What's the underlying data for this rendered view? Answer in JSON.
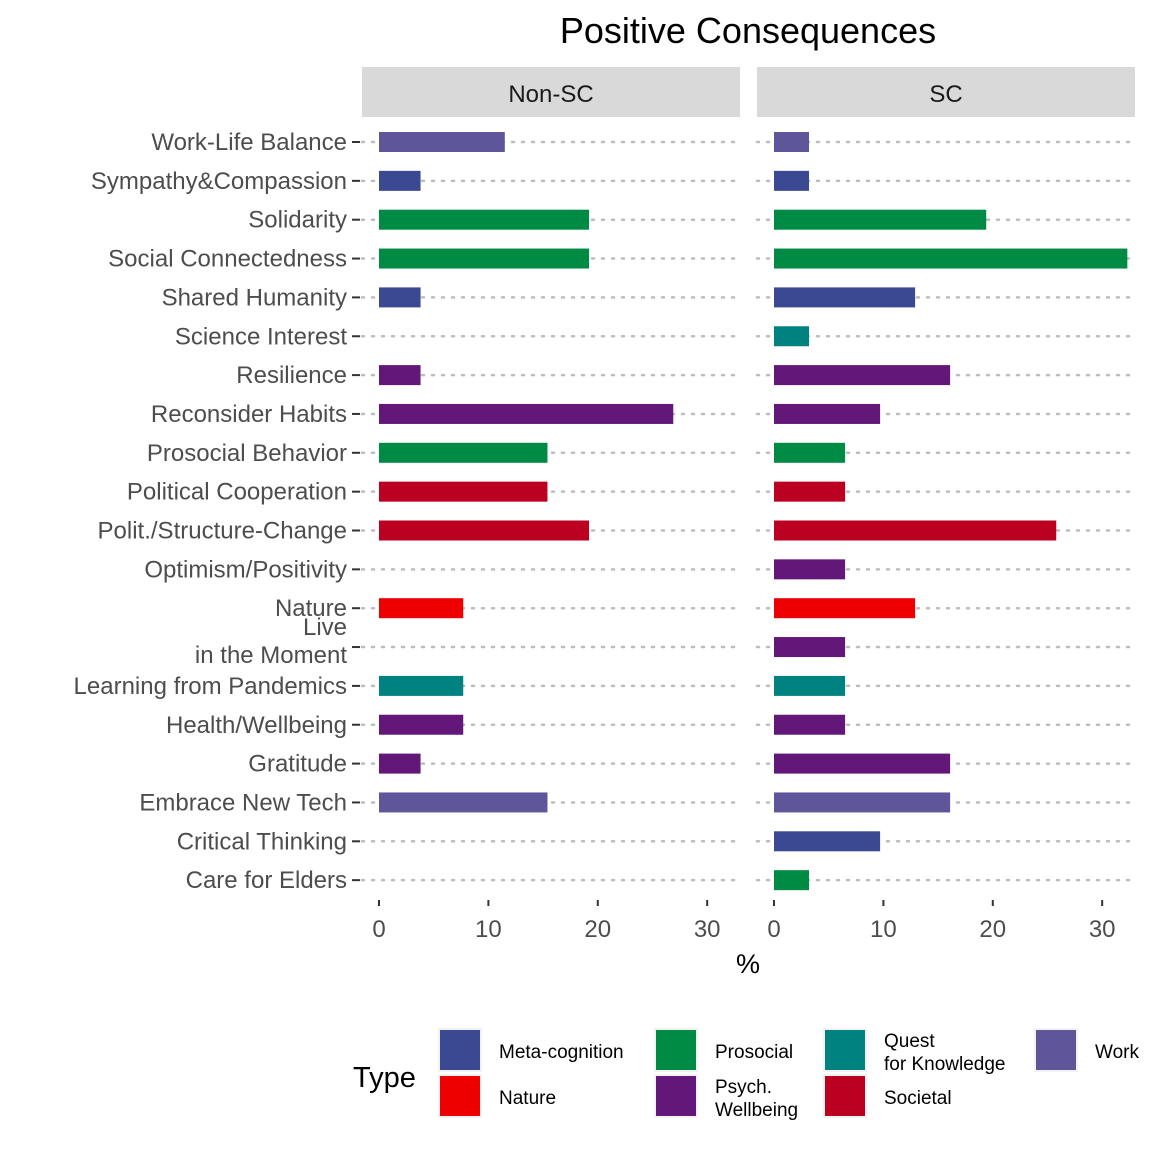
{
  "chart_data": {
    "type": "bar",
    "orientation": "horizontal",
    "title": "Positive Consequences",
    "xlabel": "%",
    "ylabel": "",
    "xlim": [
      0,
      33
    ],
    "xticks": [
      0,
      10,
      20,
      30
    ],
    "grid": "dotted horizontal lines per category",
    "facets": [
      "Non-SC",
      "SC"
    ],
    "categories": [
      "Work-Life Balance",
      "Sympathy&Compassion",
      "Solidarity",
      "Social Connectedness",
      "Shared Humanity",
      "Science Interest",
      "Resilience",
      "Reconsider Habits",
      "Prosocial Behavior",
      "Political Cooperation",
      "Polit./Structure-Change",
      "Optimism/Positivity",
      "Nature",
      "Live\nin the Moment",
      "Learning from Pandemics",
      "Health/Wellbeing",
      "Gratitude",
      "Embrace New Tech",
      "Critical Thinking",
      "Care for Elders"
    ],
    "category_type": [
      "Work",
      "Meta-cognition",
      "Prosocial",
      "Prosocial",
      "Meta-cognition",
      "Quest for Knowledge",
      "Psych. Wellbeing",
      "Psych. Wellbeing",
      "Prosocial",
      "Societal",
      "Societal",
      "Psych. Wellbeing",
      "Nature",
      "Psych. Wellbeing",
      "Quest for Knowledge",
      "Psych. Wellbeing",
      "Psych. Wellbeing",
      "Work",
      "Meta-cognition",
      "Prosocial"
    ],
    "series": [
      {
        "name": "Non-SC",
        "values": [
          11.5,
          3.8,
          19.2,
          19.2,
          3.8,
          0,
          3.8,
          26.9,
          15.4,
          15.4,
          19.2,
          0,
          7.7,
          0,
          7.7,
          7.7,
          3.8,
          15.4,
          0,
          0
        ]
      },
      {
        "name": "SC",
        "values": [
          3.2,
          3.2,
          19.4,
          32.3,
          12.9,
          3.2,
          16.1,
          9.7,
          6.5,
          6.5,
          25.8,
          6.5,
          12.9,
          6.5,
          6.5,
          6.5,
          16.1,
          16.1,
          9.7,
          3.2
        ]
      }
    ],
    "legend": {
      "title": "Type",
      "placement": "bottom",
      "items": [
        {
          "label": "Meta-cognition",
          "color": "#3B4992"
        },
        {
          "label": "Nature",
          "color": "#EE0000"
        },
        {
          "label": "Prosocial",
          "color": "#008B45"
        },
        {
          "label": "Psych.\nWellbeing",
          "key": "Psych. Wellbeing",
          "color": "#631879"
        },
        {
          "label": "Quest\nfor Knowledge",
          "key": "Quest for Knowledge",
          "color": "#008280"
        },
        {
          "label": "Societal",
          "color": "#BB0021"
        },
        {
          "label": "Work",
          "color": "#5F559B"
        }
      ]
    }
  }
}
